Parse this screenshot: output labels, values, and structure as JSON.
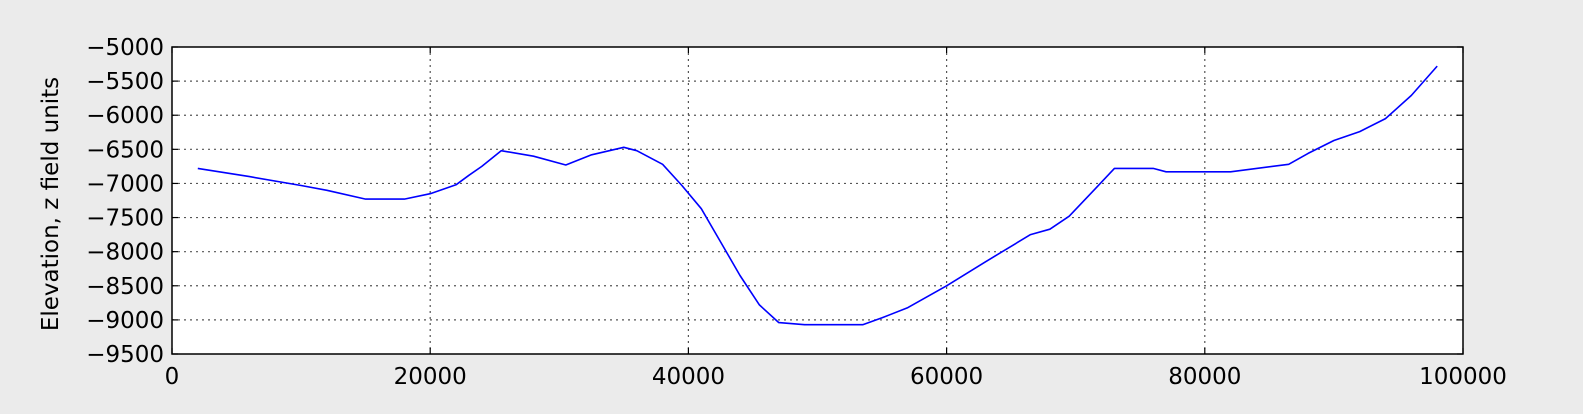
{
  "chart_data": {
    "type": "line",
    "title": "",
    "xlabel": "",
    "ylabel": "Elevation, z field units",
    "xlim": [
      0,
      100000
    ],
    "ylim": [
      -9500,
      -5000
    ],
    "xticks": [
      0,
      20000,
      40000,
      60000,
      80000,
      100000
    ],
    "xtick_labels": [
      "0",
      "20000",
      "40000",
      "60000",
      "80000",
      "100000"
    ],
    "yticks": [
      -5000,
      -5500,
      -6000,
      -6500,
      -7000,
      -7500,
      -8000,
      -8500,
      -9000,
      -9500
    ],
    "ytick_labels": [
      "−5000",
      "−5500",
      "−6000",
      "−6500",
      "−7000",
      "−7500",
      "−8000",
      "−8500",
      "−9000",
      "−9500"
    ],
    "grid": true,
    "legend": "none",
    "line_color": "#0000ff",
    "series": [
      {
        "x": [
          2000,
          6000,
          10000,
          12000,
          15000,
          18000,
          20000,
          22000,
          23000,
          24000,
          25500,
          28000,
          30500,
          32500,
          35000,
          36000,
          38000,
          39500,
          41000,
          42500,
          44000,
          45500,
          47000,
          49000,
          53500,
          55000,
          57000,
          60000,
          63000,
          66500,
          68000,
          69500,
          71500,
          73000,
          76000,
          77000,
          82000,
          86500,
          88000,
          90000,
          92000,
          94000,
          96000,
          98000
        ],
        "y": [
          -6780,
          -6900,
          -7030,
          -7100,
          -7230,
          -7230,
          -7150,
          -7020,
          -6880,
          -6750,
          -6520,
          -6600,
          -6730,
          -6580,
          -6470,
          -6520,
          -6720,
          -7030,
          -7370,
          -7860,
          -8350,
          -8780,
          -9040,
          -9070,
          -9070,
          -8970,
          -8820,
          -8500,
          -8150,
          -7750,
          -7670,
          -7480,
          -7080,
          -6780,
          -6780,
          -6830,
          -6830,
          -6720,
          -6560,
          -6370,
          -6240,
          -6050,
          -5710,
          -5280
        ]
      }
    ]
  }
}
